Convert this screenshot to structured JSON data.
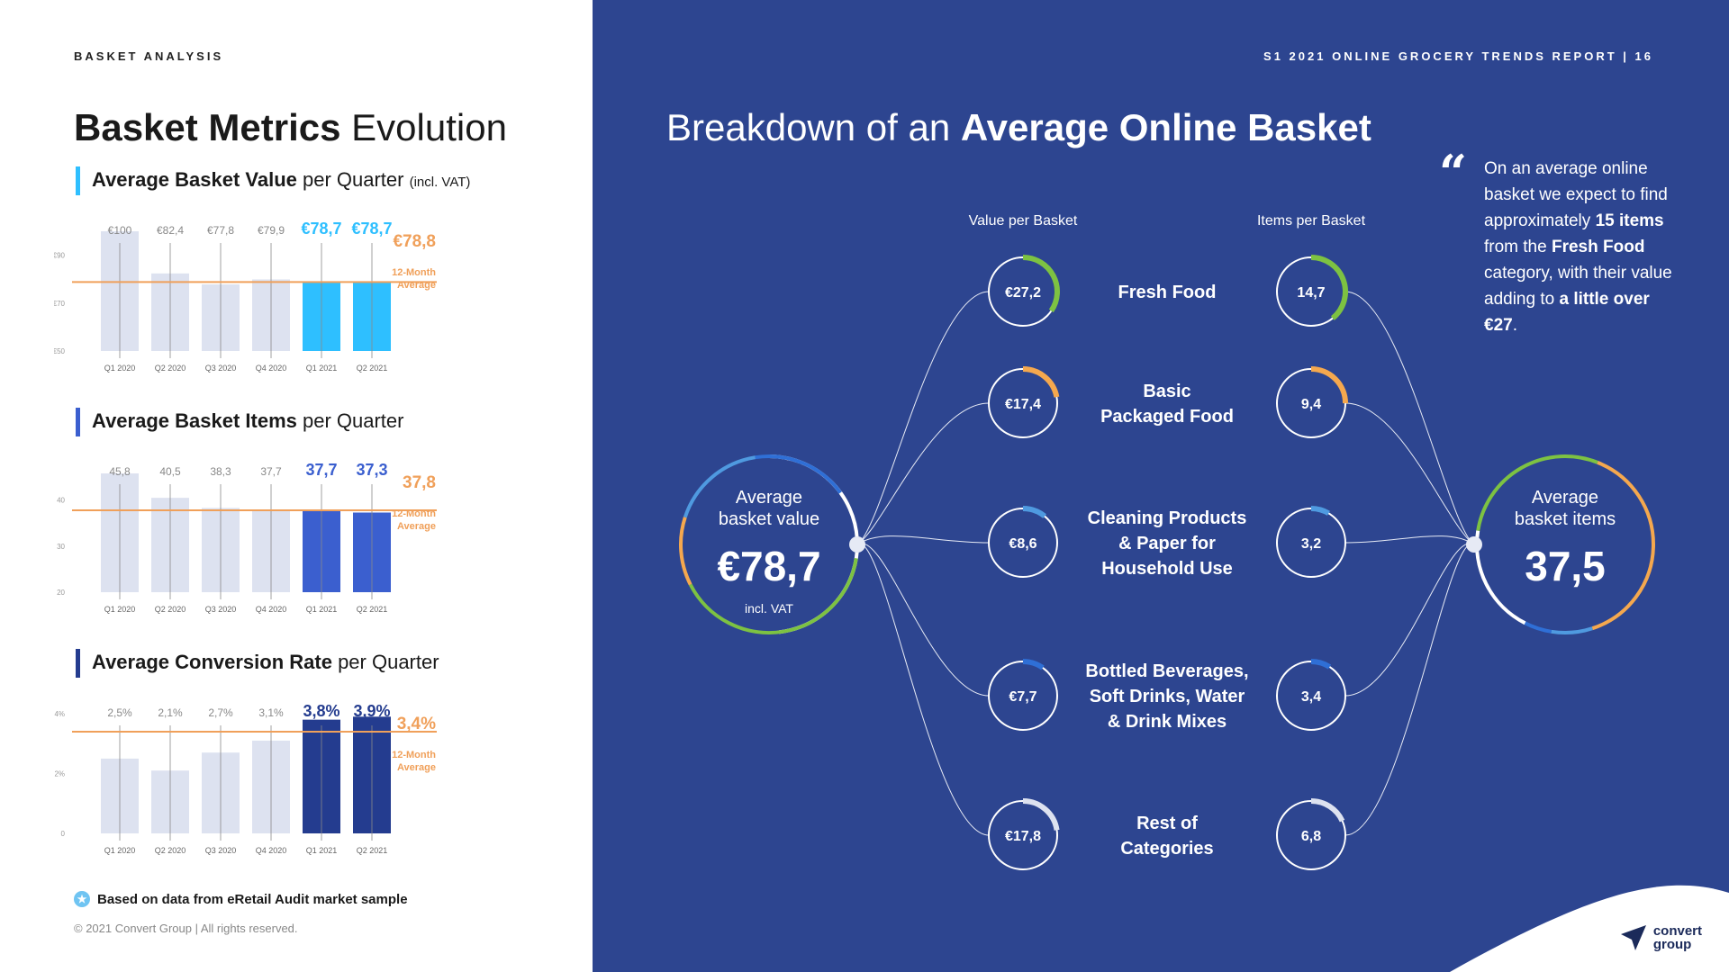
{
  "left": {
    "section_label": "BASKET ANALYSIS",
    "title_bold": "Basket Metrics",
    "title_rest": " Evolution",
    "note": "Based on data from eRetail Audit market sample",
    "copyright": "© 2021 Convert Group | All rights reserved."
  },
  "colors": {
    "light_bar": "#dde2f0",
    "avg_line": "#f0a05a",
    "chart1_highlight": "#2ebfff",
    "chart2_highlight": "#3b5fcf",
    "chart3_highlight": "#243c8f",
    "right_bg": "#2d4590",
    "green": "#7dc242",
    "orange": "#f5a84e",
    "blue": "#2f6fd6",
    "light_blue": "#4f9ae0",
    "ring_track": "#ffffff"
  },
  "chart_data": [
    {
      "type": "bar",
      "title_bold": "Average Basket Value",
      "title_rest": " per Quarter ",
      "title_small": "(incl. VAT)",
      "categories": [
        "Q1 2020",
        "Q2 2020",
        "Q3 2020",
        "Q4 2020",
        "Q1 2021",
        "Q2 2021"
      ],
      "values": [
        100,
        82.4,
        77.8,
        79.9,
        78.7,
        78.7
      ],
      "value_labels": [
        "€100",
        "€82,4",
        "€77,8",
        "€79,9",
        "€78,7",
        "€78,7"
      ],
      "highlight": [
        false,
        false,
        false,
        false,
        true,
        true
      ],
      "yticks": [
        50,
        70,
        90
      ],
      "ytick_labels": [
        "€50",
        "€70",
        "€90"
      ],
      "ylim": [
        50,
        100
      ],
      "average": 78.8,
      "average_label": "€78,8",
      "average_caption": [
        "12-Month",
        "Average"
      ]
    },
    {
      "type": "bar",
      "title_bold": "Average Basket Items",
      "title_rest": " per Quarter",
      "title_small": "",
      "categories": [
        "Q1 2020",
        "Q2 2020",
        "Q3 2020",
        "Q4 2020",
        "Q1 2021",
        "Q2 2021"
      ],
      "values": [
        45.8,
        40.5,
        38.3,
        37.7,
        37.7,
        37.3
      ],
      "value_labels": [
        "45,8",
        "40,5",
        "38,3",
        "37,7",
        "37,7",
        "37,3"
      ],
      "highlight": [
        false,
        false,
        false,
        false,
        true,
        true
      ],
      "yticks": [
        20,
        30,
        40
      ],
      "ytick_labels": [
        "20",
        "30",
        "40"
      ],
      "ylim": [
        20,
        46
      ],
      "average": 37.8,
      "average_label": "37,8",
      "average_caption": [
        "12-Month",
        "Average"
      ]
    },
    {
      "type": "bar",
      "title_bold": "Average Conversion Rate",
      "title_rest": " per Quarter",
      "title_small": "",
      "categories": [
        "Q1 2020",
        "Q2 2020",
        "Q3 2020",
        "Q4 2020",
        "Q1 2021",
        "Q2 2021"
      ],
      "values": [
        2.5,
        2.1,
        2.7,
        3.1,
        3.8,
        3.9
      ],
      "value_labels": [
        "2,5%",
        "2,1%",
        "2,7%",
        "3,1%",
        "3,8%",
        "3,9%"
      ],
      "highlight": [
        false,
        false,
        false,
        false,
        true,
        true
      ],
      "yticks": [
        0,
        2,
        4
      ],
      "ytick_labels": [
        "0",
        "2%",
        "4%"
      ],
      "ylim": [
        0,
        4
      ],
      "average": 3.4,
      "average_label": "3,4%",
      "average_caption": [
        "12-Month",
        "Average"
      ]
    }
  ],
  "right": {
    "header": "S1 2021 ONLINE GROCERY TRENDS REPORT | 16",
    "title_rest": "Breakdown of an ",
    "title_bold": "Average Online Basket",
    "col_value": "Value per Basket",
    "col_items": "Items per Basket",
    "avg_value": {
      "label": [
        "Average",
        "basket value"
      ],
      "value": "€78,7",
      "note": "incl. VAT"
    },
    "avg_items": {
      "label": [
        "Average",
        "basket items"
      ],
      "value": "37,5"
    },
    "categories": [
      {
        "name": [
          "Fresh Food"
        ],
        "value_label": "€27,2",
        "value": 27.2,
        "items_label": "14,7",
        "items": 14.7,
        "color": "#7dc242"
      },
      {
        "name": [
          "Basic",
          "Packaged Food"
        ],
        "value_label": "€17,4",
        "value": 17.4,
        "items_label": "9,4",
        "items": 9.4,
        "color": "#f5a84e"
      },
      {
        "name": [
          "Cleaning Products",
          "& Paper for",
          "Household Use"
        ],
        "value_label": "€8,6",
        "value": 8.6,
        "items_label": "3,2",
        "items": 3.2,
        "color": "#4f9ae0"
      },
      {
        "name": [
          "Bottled Beverages,",
          "Soft Drinks, Water",
          "& Drink Mixes"
        ],
        "value_label": "€7,7",
        "value": 7.7,
        "items_label": "3,4",
        "items": 3.4,
        "color": "#2f6fd6"
      },
      {
        "name": [
          "Rest of",
          "Categories"
        ],
        "value_label": "€17,8",
        "value": 17.8,
        "items_label": "6,8",
        "items": 6.8,
        "color": "#dde2f0"
      }
    ],
    "quote_parts": [
      {
        "t": "On an average online basket we expect to find approximately ",
        "b": false
      },
      {
        "t": "15 items",
        "b": true
      },
      {
        "t": " from the ",
        "b": false
      },
      {
        "t": "Fresh Food",
        "b": true
      },
      {
        "t": " category, with their value adding to ",
        "b": false
      },
      {
        "t": "a little over €27",
        "b": true
      },
      {
        "t": ".",
        "b": false
      }
    ],
    "quote_mark": "“",
    "logo": [
      "convert",
      "group"
    ]
  }
}
